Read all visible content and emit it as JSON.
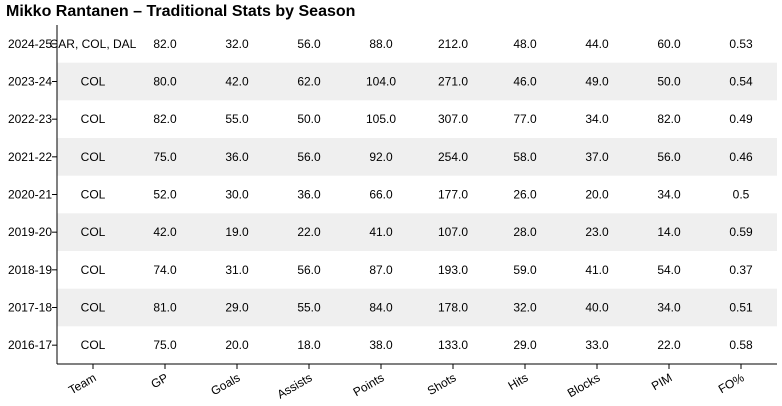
{
  "chart_data": {
    "type": "table",
    "title": "Mikko Rantanen – Traditional Stats by Season",
    "row_labels": [
      "2024-25",
      "2023-24",
      "2022-23",
      "2021-22",
      "2020-21",
      "2019-20",
      "2018-19",
      "2017-18",
      "2016-17"
    ],
    "columns": [
      "Team",
      "GP",
      "Goals",
      "Assists",
      "Points",
      "Shots",
      "Hits",
      "Blocks",
      "PIM",
      "FO%"
    ],
    "rows": [
      [
        "CAR, COL, DAL",
        "82.0",
        "32.0",
        "56.0",
        "88.0",
        "212.0",
        "48.0",
        "44.0",
        "60.0",
        "0.53"
      ],
      [
        "COL",
        "80.0",
        "42.0",
        "62.0",
        "104.0",
        "271.0",
        "46.0",
        "49.0",
        "50.0",
        "0.54"
      ],
      [
        "COL",
        "82.0",
        "55.0",
        "50.0",
        "105.0",
        "307.0",
        "77.0",
        "34.0",
        "82.0",
        "0.49"
      ],
      [
        "COL",
        "75.0",
        "36.0",
        "56.0",
        "92.0",
        "254.0",
        "58.0",
        "37.0",
        "56.0",
        "0.46"
      ],
      [
        "COL",
        "52.0",
        "30.0",
        "36.0",
        "66.0",
        "177.0",
        "26.0",
        "20.0",
        "34.0",
        "0.5"
      ],
      [
        "COL",
        "42.0",
        "19.0",
        "22.0",
        "41.0",
        "107.0",
        "28.0",
        "23.0",
        "14.0",
        "0.59"
      ],
      [
        "COL",
        "74.0",
        "31.0",
        "56.0",
        "87.0",
        "193.0",
        "59.0",
        "41.0",
        "54.0",
        "0.37"
      ],
      [
        "COL",
        "81.0",
        "29.0",
        "55.0",
        "84.0",
        "178.0",
        "32.0",
        "40.0",
        "34.0",
        "0.51"
      ],
      [
        "COL",
        "75.0",
        "20.0",
        "18.0",
        "38.0",
        "133.0",
        "29.0",
        "33.0",
        "22.0",
        "0.58"
      ]
    ],
    "stripe_color": "#efefef",
    "background_color": "#ffffff",
    "axis_color": "#000000"
  }
}
